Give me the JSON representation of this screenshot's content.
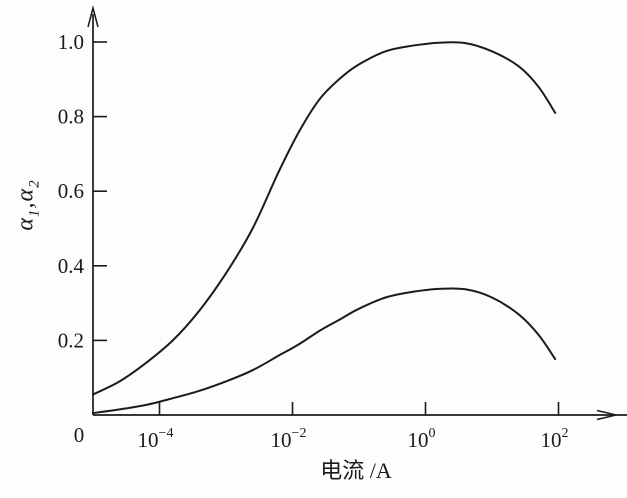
{
  "chart_data": {
    "type": "line",
    "title": "",
    "xlabel": "电流 /A",
    "ylabel": "α₁,α₂",
    "ylabel_parts": [
      {
        "text": "α",
        "sub": "1"
      },
      {
        "text": ",α",
        "sub": "2"
      }
    ],
    "x_scale": "log",
    "x_domain_log10": [
      -5,
      2.75
    ],
    "ylim": [
      0,
      1.08
    ],
    "grid": false,
    "legend": "none",
    "origin_label": "0",
    "x_ticks": [
      {
        "log10": -4,
        "base": "10",
        "exp": "−4"
      },
      {
        "log10": -2,
        "base": "10",
        "exp": "−2"
      },
      {
        "log10": 0,
        "base": "10",
        "exp": "0"
      },
      {
        "log10": 2,
        "base": "10",
        "exp": "2"
      }
    ],
    "y_ticks": [
      {
        "value": 0.2,
        "label": "0.2"
      },
      {
        "value": 0.4,
        "label": "0.4"
      },
      {
        "value": 0.6,
        "label": "0.6"
      },
      {
        "value": 0.8,
        "label": "0.8"
      },
      {
        "value": 1.0,
        "label": "1.0"
      }
    ],
    "series": [
      {
        "name": "α1",
        "points": [
          [
            -5,
            0.055
          ],
          [
            -4.6,
            0.09
          ],
          [
            -4.2,
            0.14
          ],
          [
            -3.8,
            0.2
          ],
          [
            -3.4,
            0.28
          ],
          [
            -3.0,
            0.38
          ],
          [
            -2.6,
            0.5
          ],
          [
            -2.2,
            0.655
          ],
          [
            -1.9,
            0.76
          ],
          [
            -1.6,
            0.845
          ],
          [
            -1.3,
            0.9
          ],
          [
            -1.0,
            0.94
          ],
          [
            -0.6,
            0.975
          ],
          [
            -0.2,
            0.99
          ],
          [
            0.2,
            0.998
          ],
          [
            0.6,
            0.997
          ],
          [
            1.0,
            0.975
          ],
          [
            1.4,
            0.935
          ],
          [
            1.7,
            0.88
          ],
          [
            1.95,
            0.81
          ]
        ]
      },
      {
        "name": "α2",
        "points": [
          [
            -5,
            0.005
          ],
          [
            -4.6,
            0.015
          ],
          [
            -4.2,
            0.027
          ],
          [
            -3.8,
            0.045
          ],
          [
            -3.4,
            0.065
          ],
          [
            -3.0,
            0.09
          ],
          [
            -2.6,
            0.12
          ],
          [
            -2.2,
            0.16
          ],
          [
            -1.9,
            0.19
          ],
          [
            -1.6,
            0.225
          ],
          [
            -1.3,
            0.255
          ],
          [
            -1.0,
            0.285
          ],
          [
            -0.6,
            0.315
          ],
          [
            -0.2,
            0.33
          ],
          [
            0.2,
            0.338
          ],
          [
            0.6,
            0.337
          ],
          [
            1.0,
            0.315
          ],
          [
            1.4,
            0.27
          ],
          [
            1.7,
            0.215
          ],
          [
            1.95,
            0.15
          ]
        ]
      }
    ],
    "line_color": "#1b1b1b",
    "axis_color": "#1b1b1b",
    "background": "#fdfdfd"
  }
}
